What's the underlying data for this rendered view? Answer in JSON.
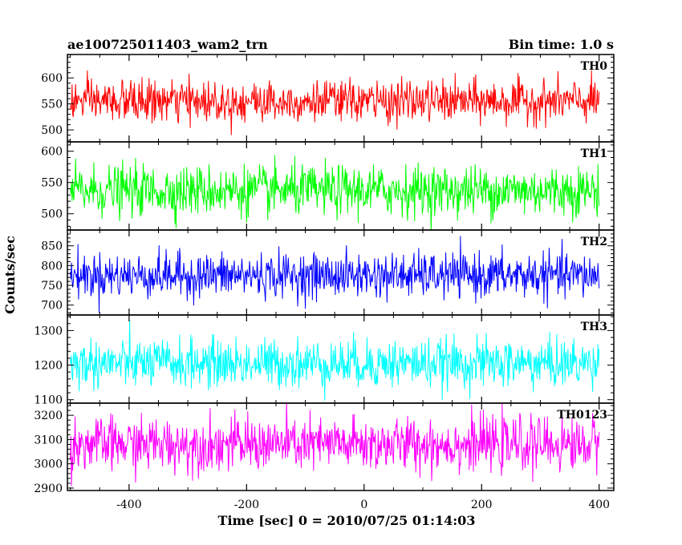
{
  "header": {
    "title": "ae100725011403_wam2_trn",
    "bin_time": "Bin time: 1.0 s"
  },
  "axes": {
    "xlabel": "Time [sec] 0 = 2010/07/25 01:14:03",
    "ylabel": "Counts/sec"
  },
  "chart_data": {
    "type": "line",
    "title": "ae100725011403_wam2_trn",
    "subtitle": "Bin time: 1.0 s",
    "xlabel": "Time [sec] 0 = 2010/07/25 01:14:03",
    "ylabel": "Counts/sec",
    "xlim": [
      -505,
      425
    ],
    "x_ticks": [
      -400,
      -200,
      0,
      200,
      400
    ],
    "x_data_range": [
      -500,
      400
    ],
    "bin_time_s": 1.0,
    "grid": false,
    "panels": [
      {
        "name": "TH0",
        "color": "#ff0000",
        "ylim": [
          477,
          645
        ],
        "yticks": [
          500,
          550,
          600
        ],
        "mean": 555,
        "sigma": 20
      },
      {
        "name": "TH1",
        "color": "#00ff00",
        "ylim": [
          474,
          615
        ],
        "yticks": [
          500,
          550,
          600
        ],
        "mean": 537,
        "sigma": 20
      },
      {
        "name": "TH2",
        "color": "#0000ff",
        "ylim": [
          675,
          890
        ],
        "yticks": [
          700,
          750,
          800,
          850
        ],
        "mean": 775,
        "sigma": 28
      },
      {
        "name": "TH3",
        "color": "#00ffff",
        "ylim": [
          1090,
          1345
        ],
        "yticks": [
          1100,
          1200,
          1300
        ],
        "mean": 1205,
        "sigma": 35
      },
      {
        "name": "TH0123",
        "color": "#ff00ff",
        "ylim": [
          2890,
          3250
        ],
        "yticks": [
          2900,
          3000,
          3100,
          3200
        ],
        "mean": 3080,
        "sigma": 55
      }
    ]
  }
}
